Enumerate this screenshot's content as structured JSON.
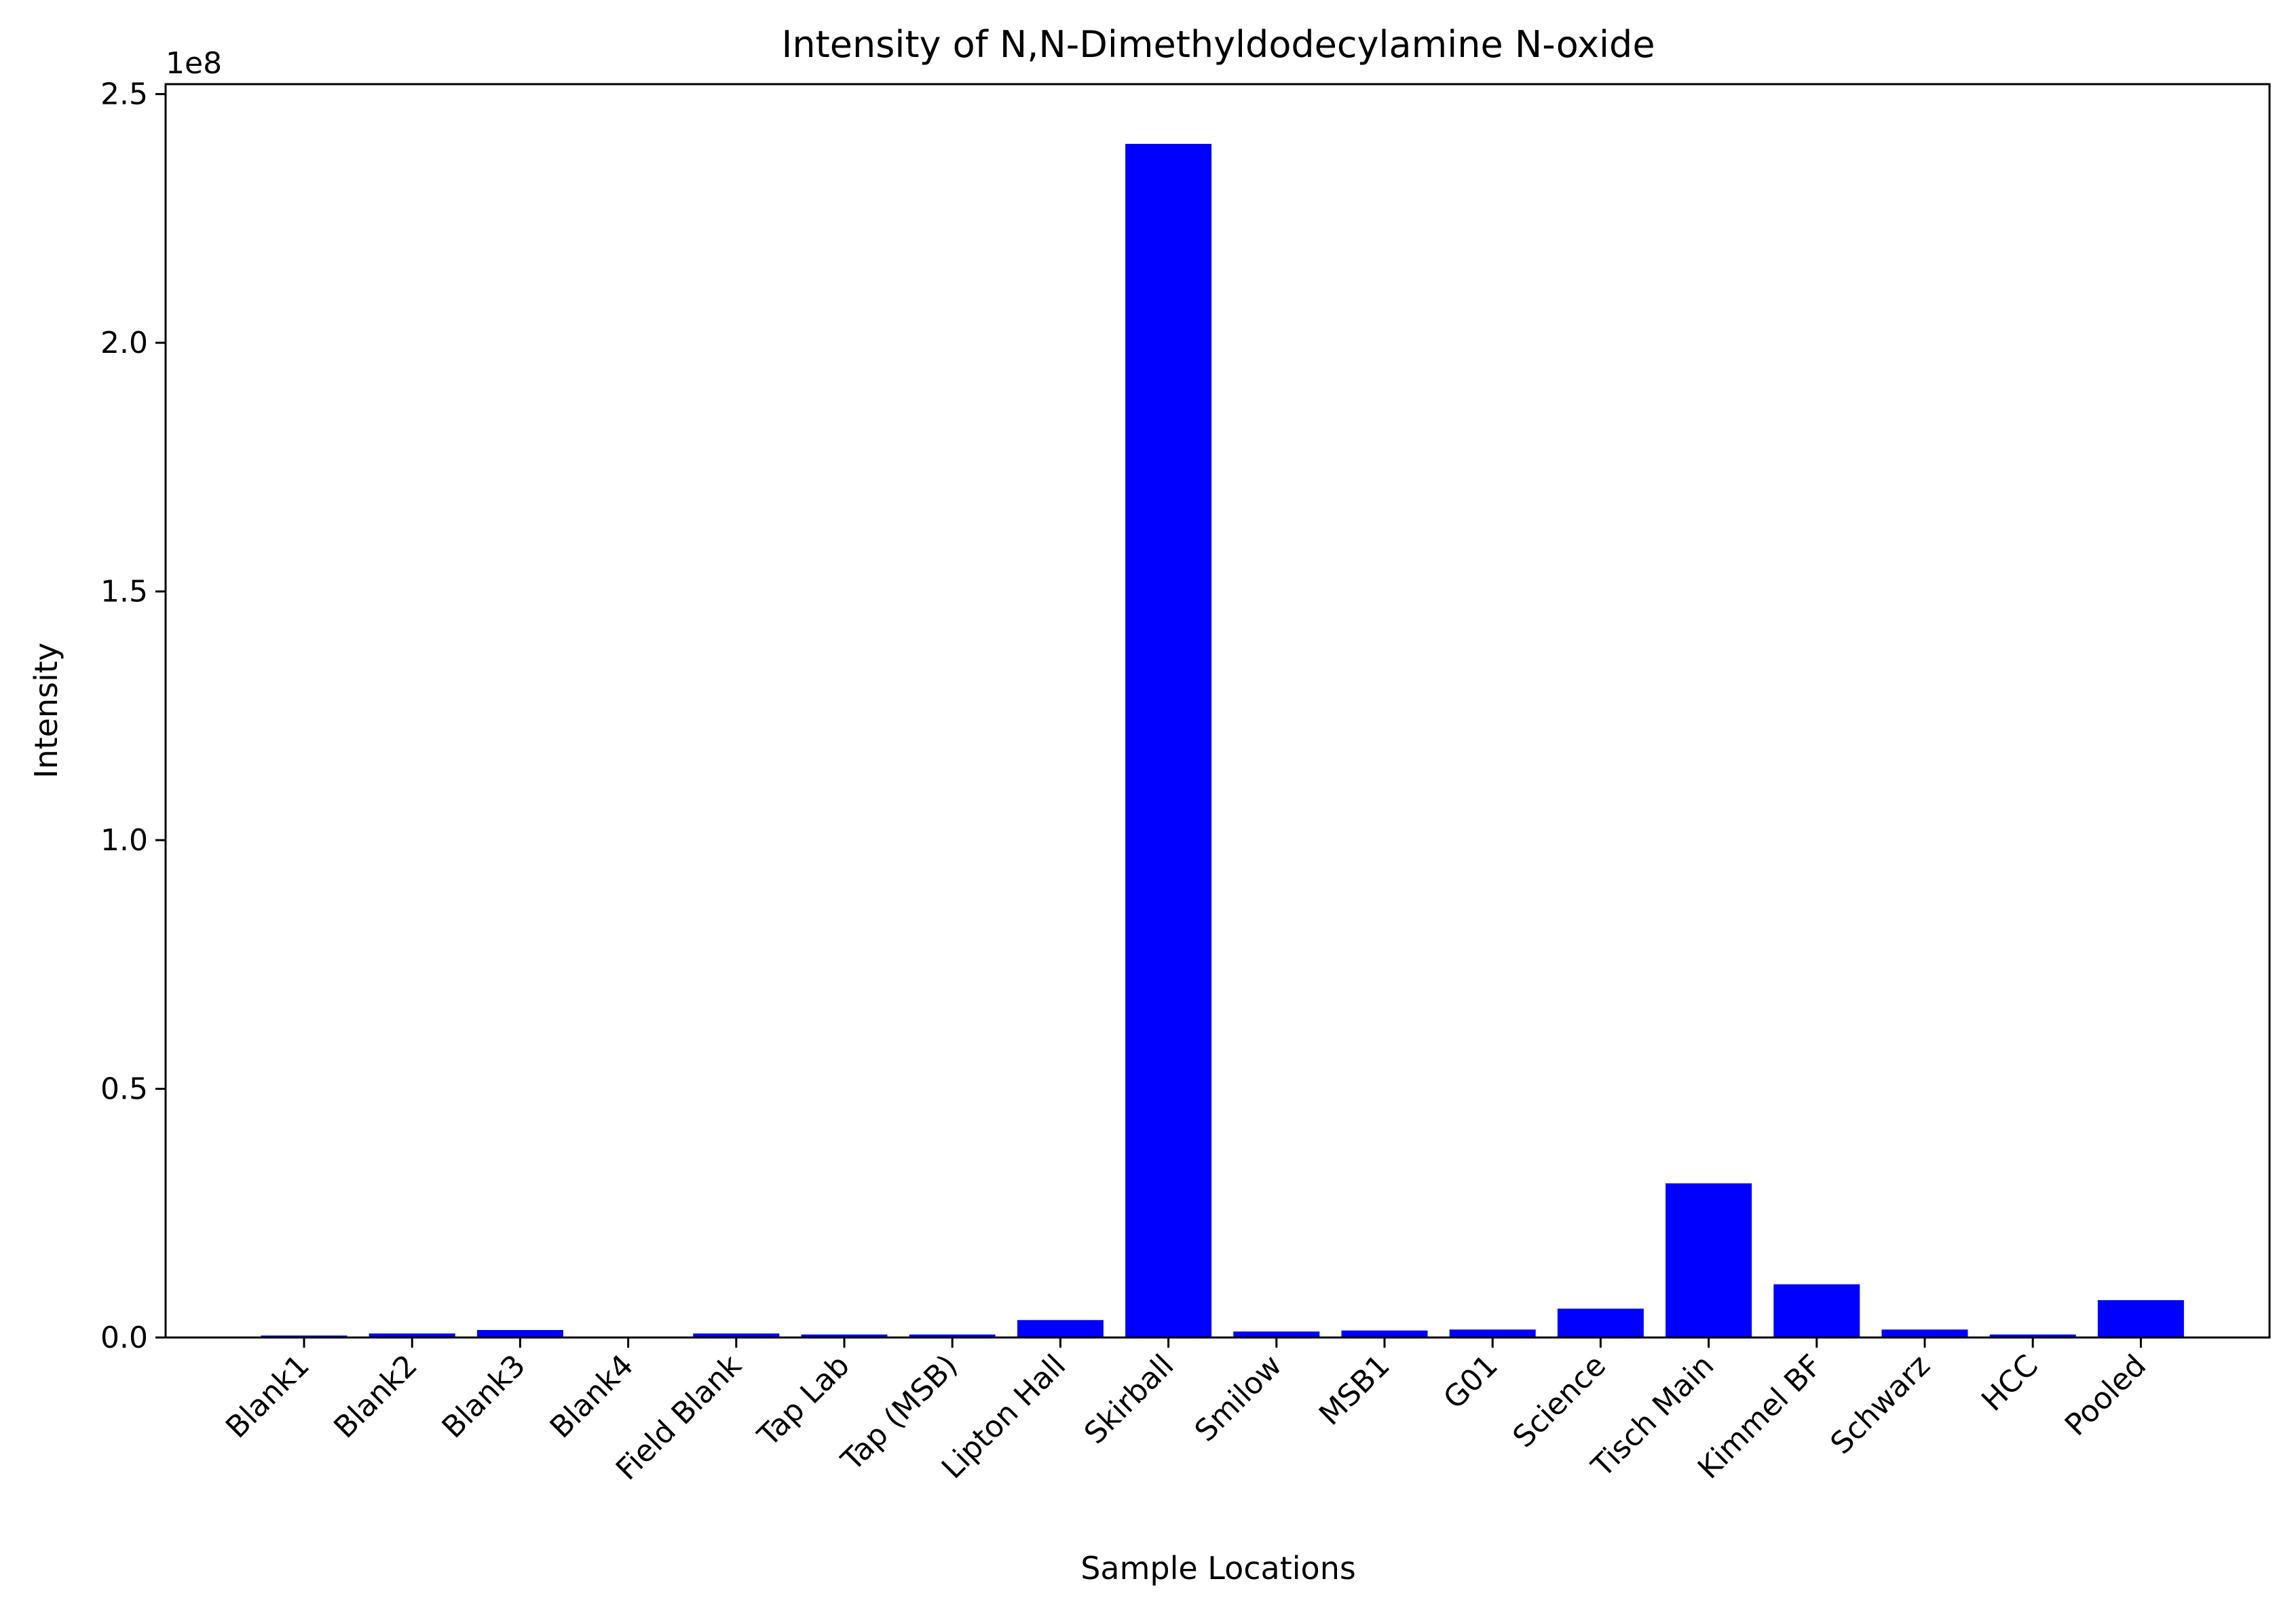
{
  "chart_data": {
    "type": "bar",
    "title": "Intensity of N,N-Dimethyldodecylamine N-oxide",
    "xlabel": "Sample Locations",
    "ylabel": "Intensity",
    "y_offset_label": "1e8",
    "y_scale": 100000000,
    "ylim": [
      0,
      252000000
    ],
    "yticks": [
      0,
      50000000,
      100000000,
      150000000,
      200000000,
      250000000
    ],
    "ytick_labels": [
      "0.0",
      "0.5",
      "1.0",
      "1.5",
      "2.0",
      "2.5"
    ],
    "grid": false,
    "bar_color": "#0000ff",
    "categories": [
      "Blank1",
      "Blank2",
      "Blank3",
      "Blank4",
      "Field Blank",
      "Tap Lab",
      "Tap (MSB)",
      "Lipton Hall",
      "Skirball",
      "Smilow",
      "MSB1",
      "G01",
      "Science",
      "Tisch Main",
      "Kimmel BF",
      "Schwarz",
      "HCC",
      "Pooled"
    ],
    "values": [
      400000,
      800000,
      1500000,
      100000,
      800000,
      600000,
      600000,
      3500000,
      240000000,
      1200000,
      1400000,
      1600000,
      5800000,
      31000000,
      10700000,
      1600000,
      600000,
      7500000
    ]
  }
}
